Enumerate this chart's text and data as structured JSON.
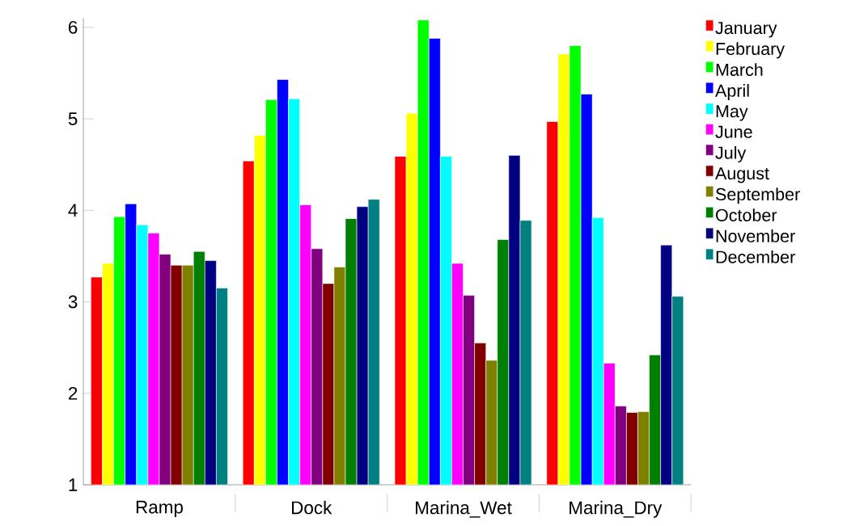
{
  "chart_data": {
    "type": "bar",
    "categories": [
      "Ramp",
      "Dock",
      "Marina_Wet",
      "Marina_Dry"
    ],
    "series": [
      {
        "name": "January",
        "color": "#ff0000",
        "values": [
          3.27,
          4.54,
          4.59,
          4.97
        ]
      },
      {
        "name": "February",
        "color": "#ffff00",
        "values": [
          3.42,
          4.82,
          5.06,
          5.71
        ]
      },
      {
        "name": "March",
        "color": "#00ff00",
        "values": [
          3.93,
          5.21,
          6.08,
          5.8
        ]
      },
      {
        "name": "April",
        "color": "#0000ff",
        "values": [
          4.07,
          5.43,
          5.88,
          5.27
        ]
      },
      {
        "name": "May",
        "color": "#00ffff",
        "values": [
          3.84,
          5.22,
          4.59,
          3.92
        ]
      },
      {
        "name": "June",
        "color": "#ff00ff",
        "values": [
          3.75,
          4.06,
          3.42,
          2.33
        ]
      },
      {
        "name": "July",
        "color": "#800080",
        "values": [
          3.52,
          3.58,
          3.07,
          1.86
        ]
      },
      {
        "name": "August",
        "color": "#800000",
        "values": [
          3.4,
          3.2,
          2.55,
          1.79
        ]
      },
      {
        "name": "September",
        "color": "#808000",
        "values": [
          3.4,
          3.38,
          2.36,
          1.8
        ]
      },
      {
        "name": "October",
        "color": "#008000",
        "values": [
          3.55,
          3.91,
          3.68,
          2.42
        ]
      },
      {
        "name": "November",
        "color": "#000080",
        "values": [
          3.45,
          4.04,
          4.6,
          3.62
        ]
      },
      {
        "name": "December",
        "color": "#008080",
        "values": [
          3.15,
          4.12,
          3.89,
          3.06
        ]
      }
    ],
    "ylim": [
      1,
      6.1
    ],
    "yticks": [
      1,
      2,
      3,
      4,
      5,
      6
    ],
    "grid": false,
    "legend": "right"
  }
}
